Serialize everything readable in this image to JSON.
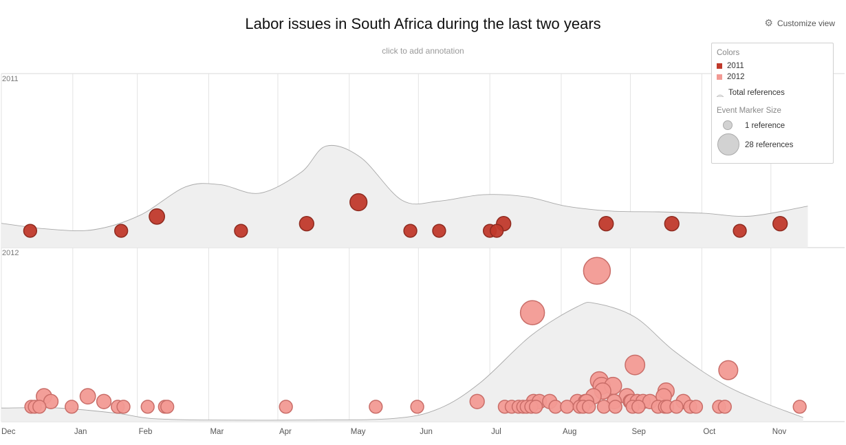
{
  "header": {
    "title": "Labor issues in South Africa during the last two years",
    "annotation_hint": "click to add annotation",
    "customize_label": "Customize view"
  },
  "legend": {
    "colors_label": "Colors",
    "size_label": "Event Marker Size",
    "total_label": "Total references",
    "size_small_label": "1 reference",
    "size_large_label": "28 references"
  },
  "chart_data": {
    "type": "scatter",
    "title": "Labor issues in South Africa during the last two years",
    "x_axis": {
      "type": "month",
      "tick_labels": [
        "Dec",
        "Jan",
        "Feb",
        "Mar",
        "Apr",
        "May",
        "Jun",
        "Jul",
        "Aug",
        "Sep",
        "Oct",
        "Nov"
      ]
    },
    "series": [
      {
        "name": "2011",
        "color": "#c0392b",
        "events": [
          {
            "x": 12.5,
            "r": 2
          },
          {
            "x": 52.0,
            "r": 2
          },
          {
            "x": 67.5,
            "r": 4
          },
          {
            "x": 104.0,
            "r": 2
          },
          {
            "x": 132.5,
            "r": 3
          },
          {
            "x": 155.0,
            "r": 6
          },
          {
            "x": 177.5,
            "r": 2
          },
          {
            "x": 190.0,
            "r": 2
          },
          {
            "x": 212.0,
            "r": 2
          },
          {
            "x": 215.0,
            "r": 2
          },
          {
            "x": 218.0,
            "r": 3
          },
          {
            "x": 262.5,
            "r": 3
          },
          {
            "x": 291.0,
            "r": 3
          },
          {
            "x": 320.5,
            "r": 2
          },
          {
            "x": 338.0,
            "r": 3
          }
        ],
        "total_references": [
          {
            "x": 0,
            "y": 3.4
          },
          {
            "x": 20,
            "y": 2.6
          },
          {
            "x": 40,
            "y": 2.5
          },
          {
            "x": 60,
            "y": 4.5
          },
          {
            "x": 80,
            "y": 8.5
          },
          {
            "x": 95,
            "y": 8.8
          },
          {
            "x": 112,
            "y": 7.6
          },
          {
            "x": 130,
            "y": 10.5
          },
          {
            "x": 141,
            "y": 14.2
          },
          {
            "x": 156,
            "y": 12.6
          },
          {
            "x": 174,
            "y": 6.6
          },
          {
            "x": 190,
            "y": 6.5
          },
          {
            "x": 209,
            "y": 7.4
          },
          {
            "x": 228,
            "y": 7.1
          },
          {
            "x": 245,
            "y": 5.8
          },
          {
            "x": 265,
            "y": 5.1
          },
          {
            "x": 285,
            "y": 5.0
          },
          {
            "x": 305,
            "y": 4.8
          },
          {
            "x": 325,
            "y": 4.4
          },
          {
            "x": 350,
            "y": 5.8
          }
        ]
      },
      {
        "name": "2012",
        "color": "#f29a94",
        "events": [
          {
            "x": 13.0,
            "r": 2
          },
          {
            "x": 14.5,
            "r": 2
          },
          {
            "x": 16.5,
            "r": 2
          },
          {
            "x": 18.5,
            "r": 4
          },
          {
            "x": 21.5,
            "r": 3
          },
          {
            "x": 30.5,
            "r": 2
          },
          {
            "x": 37.5,
            "r": 4
          },
          {
            "x": 44.5,
            "r": 3
          },
          {
            "x": 50.5,
            "r": 2
          },
          {
            "x": 53.0,
            "r": 2
          },
          {
            "x": 63.5,
            "r": 2
          },
          {
            "x": 71.0,
            "r": 2
          },
          {
            "x": 72.0,
            "r": 2
          },
          {
            "x": 123.5,
            "r": 2
          },
          {
            "x": 162.5,
            "r": 2
          },
          {
            "x": 180.5,
            "r": 2
          },
          {
            "x": 206.5,
            "r": 3
          },
          {
            "x": 218.5,
            "r": 2
          },
          {
            "x": 221.5,
            "r": 2
          },
          {
            "x": 224.5,
            "r": 2
          },
          {
            "x": 226.5,
            "r": 2
          },
          {
            "x": 228.0,
            "r": 2
          },
          {
            "x": 230.0,
            "r": 2
          },
          {
            "x": 230.5,
            "r": 20
          },
          {
            "x": 231.0,
            "r": 3
          },
          {
            "x": 232.0,
            "r": 2
          },
          {
            "x": 233.5,
            "r": 3
          },
          {
            "x": 238.0,
            "r": 3
          },
          {
            "x": 240.5,
            "r": 2
          },
          {
            "x": 245.5,
            "r": 2
          },
          {
            "x": 250.0,
            "r": 3
          },
          {
            "x": 251.0,
            "r": 2
          },
          {
            "x": 252.5,
            "r": 2
          },
          {
            "x": 253.5,
            "r": 3
          },
          {
            "x": 254.0,
            "r": 3
          },
          {
            "x": 255.0,
            "r": 2
          },
          {
            "x": 257.0,
            "r": 4
          },
          {
            "x": 258.5,
            "r": 28
          },
          {
            "x": 259.5,
            "r": 7
          },
          {
            "x": 260.5,
            "r": 6
          },
          {
            "x": 261.0,
            "r": 5
          },
          {
            "x": 261.5,
            "r": 2
          },
          {
            "x": 265.5,
            "r": 6
          },
          {
            "x": 266.0,
            "r": 3
          },
          {
            "x": 266.5,
            "r": 2
          },
          {
            "x": 271.5,
            "r": 4
          },
          {
            "x": 273.0,
            "r": 3
          },
          {
            "x": 273.5,
            "r": 3
          },
          {
            "x": 274.0,
            "r": 2
          },
          {
            "x": 275.0,
            "r": 10
          },
          {
            "x": 276.0,
            "r": 3
          },
          {
            "x": 276.5,
            "r": 2
          },
          {
            "x": 278.5,
            "r": 3
          },
          {
            "x": 281.5,
            "r": 3
          },
          {
            "x": 285.0,
            "r": 2
          },
          {
            "x": 287.5,
            "r": 4
          },
          {
            "x": 288.0,
            "r": 2
          },
          {
            "x": 288.5,
            "r": 5
          },
          {
            "x": 289.0,
            "r": 2
          },
          {
            "x": 293.0,
            "r": 2
          },
          {
            "x": 296.0,
            "r": 3
          },
          {
            "x": 299.0,
            "r": 2
          },
          {
            "x": 301.5,
            "r": 2
          },
          {
            "x": 311.5,
            "r": 2
          },
          {
            "x": 314.0,
            "r": 2
          },
          {
            "x": 315.5,
            "r": 9
          },
          {
            "x": 346.5,
            "r": 2
          }
        ],
        "total_references": [
          {
            "x": 0,
            "y": 2.6
          },
          {
            "x": 25,
            "y": 2.6
          },
          {
            "x": 50,
            "y": 1.6
          },
          {
            "x": 65,
            "y": 0.6
          },
          {
            "x": 90,
            "y": 0.3
          },
          {
            "x": 130,
            "y": 0.3
          },
          {
            "x": 170,
            "y": 0.6
          },
          {
            "x": 190,
            "y": 2.5
          },
          {
            "x": 208,
            "y": 7.5
          },
          {
            "x": 230,
            "y": 16.5
          },
          {
            "x": 250,
            "y": 22.0
          },
          {
            "x": 258,
            "y": 22.6
          },
          {
            "x": 275,
            "y": 20.0
          },
          {
            "x": 292,
            "y": 13.5
          },
          {
            "x": 312,
            "y": 7.5
          },
          {
            "x": 330,
            "y": 3.8
          },
          {
            "x": 348,
            "y": 0.8
          }
        ]
      }
    ],
    "grid": true,
    "legend_position": "top-right"
  }
}
